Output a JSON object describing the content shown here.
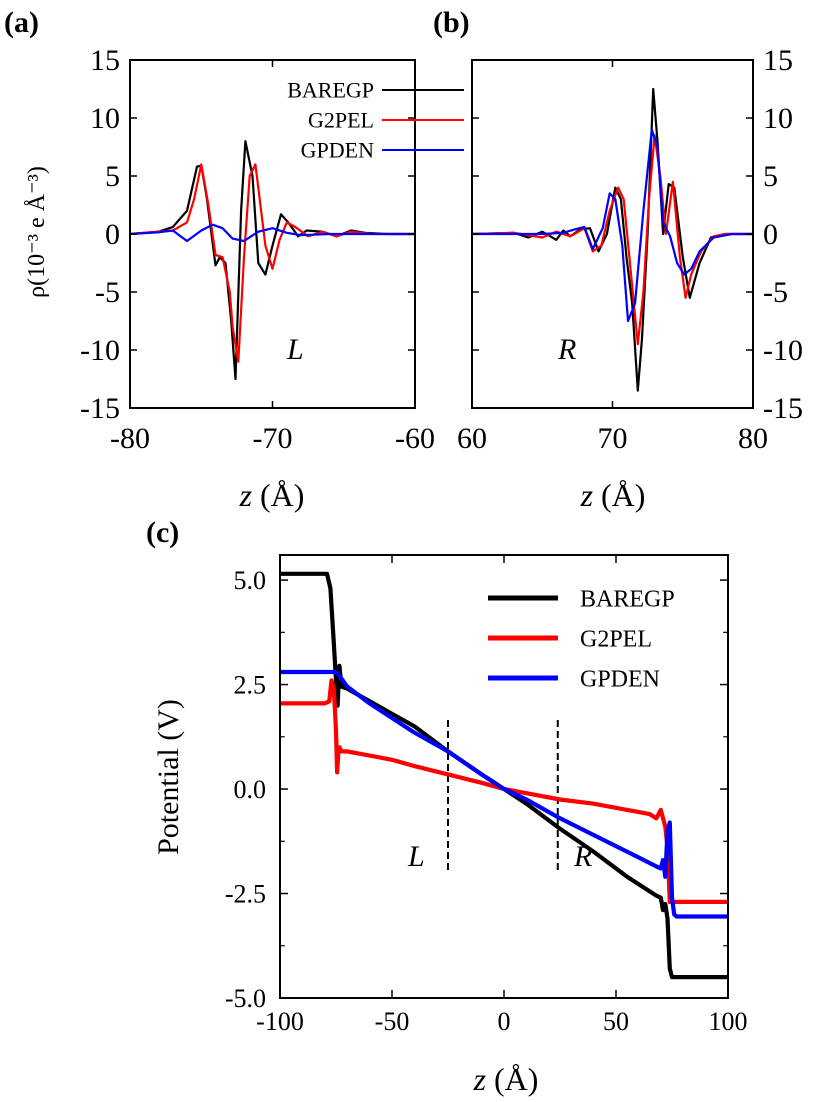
{
  "panels": {
    "a": "(a)",
    "b": "(b)",
    "c": "(c)"
  },
  "chart_data": [
    {
      "id": "a",
      "type": "line",
      "xlabel_var": "z",
      "xlabel_unit": "(Å)",
      "ylabel": "ρ(10⁻³ e Å⁻³)",
      "xlim": [
        -80,
        -60
      ],
      "ylim": [
        -15,
        15
      ],
      "xticks": [
        -80,
        -70,
        -60
      ],
      "xtick_labels": [
        "-80",
        "-70",
        "-60"
      ],
      "yticks": [
        -15,
        -10,
        -5,
        0,
        5,
        10,
        15
      ],
      "ytick_labels": [
        "-15",
        "-10",
        "-5",
        "0",
        "5",
        "10",
        "15"
      ],
      "annotation": "L",
      "legend_position": "top-right",
      "series": [
        {
          "name": "BAREGP",
          "color": "#000000",
          "x": [
            -80,
            -78,
            -77,
            -76,
            -75.3,
            -75,
            -74.6,
            -74,
            -73.7,
            -73.3,
            -72.9,
            -72.6,
            -72.2,
            -71.9,
            -71.4,
            -71,
            -70.5,
            -70,
            -69.4,
            -68.9,
            -68.2,
            -67.6,
            -66.5,
            -65.5,
            -64.5,
            -63.5,
            -62,
            -60
          ],
          "y": [
            0,
            0.2,
            0.6,
            2,
            5.8,
            5.9,
            3,
            -2.7,
            -2,
            -2.5,
            -7.5,
            -12.5,
            2,
            8,
            5,
            -2.5,
            -3.5,
            -1,
            1.7,
            1,
            -0.2,
            0.3,
            0.2,
            -0.2,
            0.3,
            0.1,
            0,
            0
          ]
        },
        {
          "name": "G2PEL",
          "color": "#ff0000",
          "x": [
            -80,
            -77,
            -76,
            -75.5,
            -75,
            -74.5,
            -74,
            -73.5,
            -73,
            -72.8,
            -72.4,
            -72,
            -71.6,
            -71.2,
            -71,
            -70.5,
            -70,
            -69.5,
            -69,
            -68.4,
            -67.5,
            -66.5,
            -65.5,
            -64.5,
            -63,
            -60
          ],
          "y": [
            0,
            0.3,
            1,
            3,
            6,
            2.5,
            -1.8,
            -2,
            -5,
            -8,
            -11,
            -2,
            5,
            6,
            4,
            -1,
            -3,
            -0.5,
            1,
            0.6,
            -0.2,
            0.2,
            -0.2,
            0.2,
            0,
            0
          ]
        },
        {
          "name": "GPDEN",
          "color": "#0000ff",
          "x": [
            -80,
            -78,
            -77,
            -76,
            -75,
            -74.2,
            -73.5,
            -72.8,
            -72,
            -71,
            -70,
            -69,
            -68,
            -66,
            -63,
            -60
          ],
          "y": [
            0,
            0.15,
            0.3,
            -0.6,
            0.3,
            0.8,
            0.5,
            -0.4,
            -0.6,
            0.2,
            0.5,
            0.1,
            -0.1,
            0,
            0,
            0
          ]
        }
      ]
    },
    {
      "id": "b",
      "type": "line",
      "xlabel_var": "z",
      "xlabel_unit": "(Å)",
      "ylabel": "",
      "xlim": [
        60,
        80
      ],
      "ylim": [
        -15,
        15
      ],
      "xticks": [
        60,
        70,
        80
      ],
      "xtick_labels": [
        "60",
        "70",
        "80"
      ],
      "yticks": [
        -15,
        -10,
        -5,
        0,
        5,
        10,
        15
      ],
      "ytick_labels": [
        "-15",
        "-10",
        "-5",
        "0",
        "5",
        "10",
        "15"
      ],
      "annotation": "R",
      "series": [
        {
          "name": "BAREGP",
          "color": "#000000",
          "x": [
            60,
            63,
            64,
            65,
            66,
            66.5,
            67,
            67.7,
            68.4,
            69,
            69.6,
            70.2,
            70.6,
            71,
            71.4,
            71.8,
            72.1,
            72.5,
            72.9,
            73.2,
            73.6,
            74,
            74.4,
            75,
            75.5,
            76.2,
            77,
            78,
            80
          ],
          "y": [
            0,
            0.1,
            -0.3,
            0.2,
            -0.5,
            0.3,
            -0.2,
            0.4,
            0.5,
            -1.5,
            0,
            4,
            3,
            -2,
            -6,
            -13.5,
            -9,
            0,
            12.5,
            8,
            0,
            4.3,
            4,
            -2,
            -5.5,
            -2.5,
            -0.3,
            0,
            0
          ]
        },
        {
          "name": "G2PEL",
          "color": "#ff0000",
          "x": [
            60,
            63,
            65,
            66,
            67,
            68,
            68.6,
            69.2,
            69.8,
            70.4,
            70.8,
            71.2,
            71.8,
            72.2,
            72.6,
            73,
            73.4,
            73.8,
            74.3,
            74.8,
            75.2,
            75.6,
            76.3,
            77.2,
            78,
            80
          ],
          "y": [
            0,
            0.1,
            -0.3,
            0.2,
            -0.2,
            0.5,
            -1.5,
            -1,
            2,
            4,
            3,
            -2,
            -9.5,
            -5,
            3,
            8.5,
            5,
            0,
            4.5,
            -2,
            -5.5,
            -3.5,
            -1.5,
            -0.2,
            0,
            0
          ]
        },
        {
          "name": "GPDEN",
          "color": "#0000ff",
          "x": [
            60,
            65,
            66.5,
            67.3,
            68,
            68.6,
            69.3,
            69.8,
            70.2,
            70.7,
            71.1,
            71.6,
            72.2,
            72.8,
            73.2,
            73.6,
            74.1,
            74.6,
            75.1,
            75.6,
            76.2,
            77.2,
            78.5,
            80
          ],
          "y": [
            0,
            0,
            0.1,
            0.4,
            0.6,
            -1.3,
            0.5,
            3.5,
            3,
            -1,
            -7.5,
            -6,
            2,
            9,
            7.5,
            1,
            -0.2,
            -2.5,
            -3.5,
            -3,
            -1.5,
            -0.3,
            0,
            0
          ]
        }
      ]
    },
    {
      "id": "c",
      "type": "line",
      "xlabel_var": "z",
      "xlabel_unit": "(Å)",
      "ylabel": "Potential (V)",
      "xlim": [
        -100,
        100
      ],
      "ylim": [
        -5,
        5.6
      ],
      "xticks": [
        -100,
        -50,
        0,
        50,
        100
      ],
      "xtick_labels": [
        "-100",
        "-50",
        "0",
        "50",
        "100"
      ],
      "yticks": [
        -5,
        -2.5,
        0,
        2.5,
        5
      ],
      "ytick_labels": [
        "-5.0",
        "-2.5",
        "0.0",
        "2.5",
        "5.0"
      ],
      "ytick_minor": [
        -3.75,
        -1.25,
        1.25,
        3.75
      ],
      "annotations": [
        "L",
        "R"
      ],
      "vlines": [
        -25,
        24
      ],
      "legend_position": "top-right",
      "series": [
        {
          "name": "BAREGP",
          "color": "#000000",
          "x": [
            -100,
            -79,
            -77.5,
            -76,
            -75,
            -74.3,
            -73.5,
            -72.5,
            -70,
            -50,
            -40,
            -25,
            -10,
            0,
            10,
            25,
            40,
            55,
            68,
            70,
            71,
            72,
            73,
            74,
            75,
            78,
            100
          ],
          "y": [
            5.15,
            5.15,
            4.8,
            3.5,
            2.6,
            2.0,
            2.95,
            2.45,
            2.4,
            1.8,
            1.5,
            0.9,
            0.35,
            0,
            -0.35,
            -0.95,
            -1.5,
            -2.1,
            -2.55,
            -2.6,
            -2.9,
            -2.75,
            -3.1,
            -4.3,
            -4.5,
            -4.5,
            -4.5
          ]
        },
        {
          "name": "G2PEL",
          "color": "#ff0000",
          "x": [
            -100,
            -80,
            -78,
            -77,
            -76,
            -75,
            -74.5,
            -74,
            -73.5,
            -72.5,
            -70,
            -60,
            -50,
            -40,
            -25,
            -10,
            0,
            10,
            25,
            40,
            55,
            65,
            68,
            69,
            70,
            71,
            72,
            73,
            74,
            100
          ],
          "y": [
            2.05,
            2.05,
            2.1,
            2.6,
            2.4,
            1.4,
            0.4,
            0.8,
            1.0,
            0.9,
            0.9,
            0.8,
            0.7,
            0.55,
            0.35,
            0.15,
            0,
            -0.1,
            -0.25,
            -0.35,
            -0.5,
            -0.6,
            -0.7,
            -0.6,
            -0.5,
            -0.7,
            -0.9,
            -1.4,
            -2.7,
            -2.7
          ]
        },
        {
          "name": "GPDEN",
          "color": "#0000ff",
          "x": [
            -100,
            -75,
            -74,
            -72,
            -70,
            -60,
            -50,
            -40,
            -25,
            -10,
            0,
            10,
            25,
            40,
            55,
            68,
            70,
            71,
            72,
            73,
            74,
            75,
            76,
            77,
            100
          ],
          "y": [
            2.8,
            2.8,
            2.75,
            2.6,
            2.45,
            2.05,
            1.7,
            1.35,
            0.9,
            0.35,
            0,
            -0.25,
            -0.7,
            -1.1,
            -1.5,
            -1.85,
            -1.9,
            -1.7,
            -2.1,
            -1.0,
            -0.8,
            -2.6,
            -3.0,
            -3.05,
            -3.05
          ]
        }
      ]
    }
  ]
}
